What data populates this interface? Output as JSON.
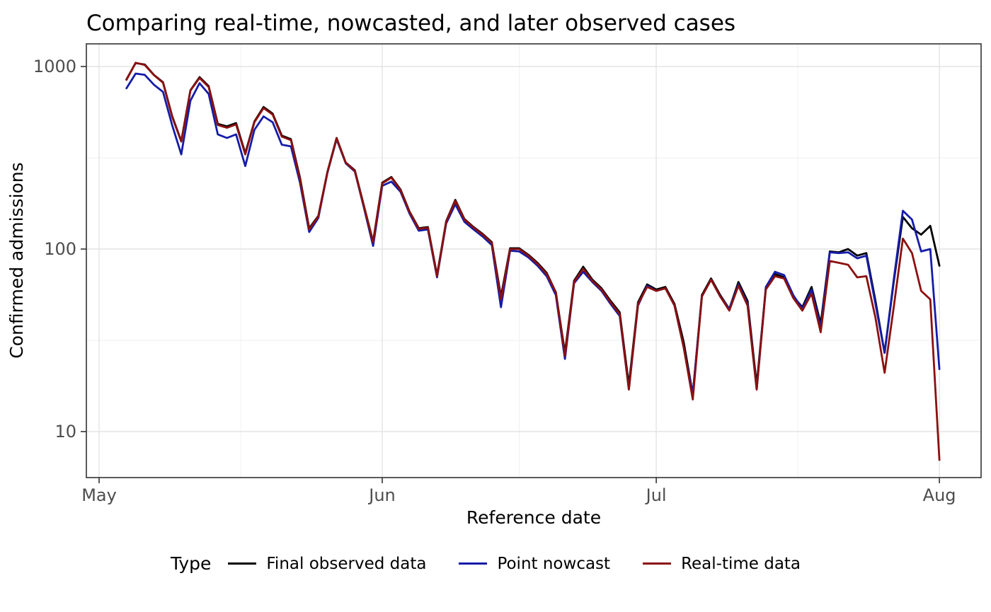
{
  "title": "Comparing real-time, nowcasted, and later observed cases",
  "legend": {
    "title": "Type",
    "items": [
      {
        "label": "Final observed data"
      },
      {
        "label": "Point nowcast"
      },
      {
        "label": "Real-time data"
      }
    ]
  },
  "chart_data": {
    "type": "line",
    "title": "Comparing real-time, nowcasted, and later observed cases",
    "xlabel": "Reference date",
    "ylabel": "Confirmed admissions",
    "y_scale": "log10",
    "ylim": [
      7,
      1330
    ],
    "grid": "major and minor, light gray, white panel with dark border",
    "legend_position": "bottom",
    "x_start_day": 3,
    "x_start_date": "May 4",
    "x_end_date": "Aug 1",
    "frequency": "daily",
    "x_axis": {
      "label": "Reference date",
      "ticks": [
        {
          "label": "May",
          "day": 0
        },
        {
          "label": "Jun",
          "day": 31
        },
        {
          "label": "Jul",
          "day": 61
        },
        {
          "label": "Aug",
          "day": 92
        }
      ],
      "minor_days": [
        15.5,
        46,
        76.5
      ]
    },
    "y_axis": {
      "label": "Confirmed admissions",
      "ticks": [
        {
          "label": "10",
          "value": 10
        },
        {
          "label": "100",
          "value": 100
        },
        {
          "label": "1000",
          "value": 1000
        }
      ],
      "minor_values": [
        31.6,
        316
      ]
    },
    "series": [
      {
        "name": "Final observed data",
        "color": "#000000",
        "values": [
          850,
          1045,
          1025,
          900,
          820,
          535,
          390,
          740,
          875,
          780,
          485,
          470,
          490,
          335,
          500,
          600,
          552,
          418,
          400,
          245,
          130,
          152,
          265,
          406,
          298,
          270,
          172,
          110,
          231,
          248,
          212,
          160,
          130,
          132,
          72,
          142,
          186,
          146,
          132,
          121,
          109,
          55,
          101,
          101,
          93,
          84,
          74,
          58,
          27,
          67,
          80,
          68,
          61,
          52,
          45,
          18,
          51,
          64,
          60,
          62,
          50,
          31,
          16,
          56,
          69,
          56,
          47,
          66,
          52,
          18,
          61,
          73,
          70,
          55,
          48,
          62,
          39,
          97,
          96,
          100,
          92,
          95,
          52,
          27,
          66,
          150,
          130,
          120,
          134,
          81
        ]
      },
      {
        "name": "Point nowcast",
        "color": "#151CA8",
        "values": [
          760,
          915,
          900,
          795,
          726,
          477,
          330,
          650,
          810,
          707,
          425,
          406,
          425,
          285,
          450,
          533,
          495,
          373,
          365,
          230,
          124,
          148,
          262,
          400,
          295,
          266,
          168,
          104,
          222,
          234,
          206,
          156,
          126,
          128,
          70,
          138,
          176,
          141,
          128,
          117,
          105,
          48,
          98,
          97,
          90,
          81,
          71,
          56,
          25,
          65,
          75,
          66,
          59,
          50,
          43,
          17,
          49,
          63,
          59,
          61,
          49,
          29,
          16,
          55,
          68,
          55,
          47,
          64,
          50,
          17,
          62,
          75,
          72,
          56,
          47,
          60,
          37,
          96,
          95,
          96,
          89,
          92,
          50,
          27,
          68,
          162,
          145,
          97,
          100,
          22
        ]
      },
      {
        "name": "Real-time data",
        "color": "#8B1010",
        "values": [
          845,
          1048,
          1020,
          898,
          815,
          530,
          388,
          738,
          866,
          772,
          478,
          462,
          482,
          330,
          495,
          592,
          545,
          413,
          395,
          240,
          128,
          151,
          264,
          404,
          297,
          268,
          170,
          109,
          229,
          246,
          210,
          159,
          129,
          131,
          71,
          141,
          184,
          145,
          131,
          120,
          108,
          53,
          100,
          100,
          92,
          83,
          73,
          58,
          26,
          66,
          78,
          67,
          60,
          51,
          44,
          17,
          50,
          62,
          59,
          61,
          49,
          29,
          15,
          55,
          68,
          55,
          46,
          63,
          49,
          17,
          60,
          71,
          69,
          54,
          46,
          57,
          35,
          86,
          84,
          82,
          70,
          71,
          42,
          21,
          48,
          114,
          95,
          59,
          53,
          7
        ]
      }
    ]
  }
}
